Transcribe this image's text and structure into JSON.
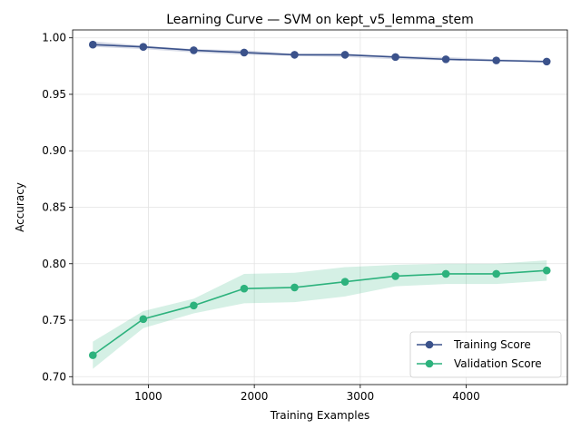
{
  "chart_data": {
    "type": "line",
    "title": "Learning Curve — SVM on kept_v5_lemma_stem",
    "xlabel": "Training Examples",
    "ylabel": "Accuracy",
    "xlim": [
      285,
      4955
    ],
    "ylim": [
      0.693,
      1.007
    ],
    "xticks": [
      1000,
      2000,
      3000,
      4000
    ],
    "xtick_labels": [
      "1000",
      "2000",
      "3000",
      "4000"
    ],
    "yticks": [
      0.7,
      0.75,
      0.8,
      0.85,
      0.9,
      0.95,
      1.0
    ],
    "ytick_labels": [
      "0.70",
      "0.75",
      "0.80",
      "0.85",
      "0.90",
      "0.95",
      "1.00"
    ],
    "grid": true,
    "legend_position": "lower-right",
    "x": [
      476,
      952,
      1428,
      1904,
      2380,
      2856,
      3332,
      3808,
      4284,
      4760
    ],
    "series": [
      {
        "name": "Training Score",
        "color": "#3b528b",
        "values": [
          0.994,
          0.992,
          0.989,
          0.987,
          0.985,
          0.985,
          0.983,
          0.981,
          0.98,
          0.979
        ],
        "band_lower": [
          0.992,
          0.99,
          0.987,
          0.985,
          0.984,
          0.983,
          0.981,
          0.98,
          0.979,
          0.978
        ],
        "band_upper": [
          0.997,
          0.993,
          0.99,
          0.989,
          0.986,
          0.986,
          0.984,
          0.983,
          0.981,
          0.98
        ]
      },
      {
        "name": "Validation Score",
        "color": "#2db27d",
        "values": [
          0.719,
          0.751,
          0.763,
          0.778,
          0.779,
          0.784,
          0.789,
          0.791,
          0.791,
          0.794
        ],
        "band_lower": [
          0.707,
          0.743,
          0.756,
          0.765,
          0.766,
          0.771,
          0.78,
          0.782,
          0.782,
          0.785
        ],
        "band_upper": [
          0.731,
          0.758,
          0.769,
          0.791,
          0.792,
          0.797,
          0.799,
          0.8,
          0.8,
          0.803
        ]
      }
    ]
  }
}
